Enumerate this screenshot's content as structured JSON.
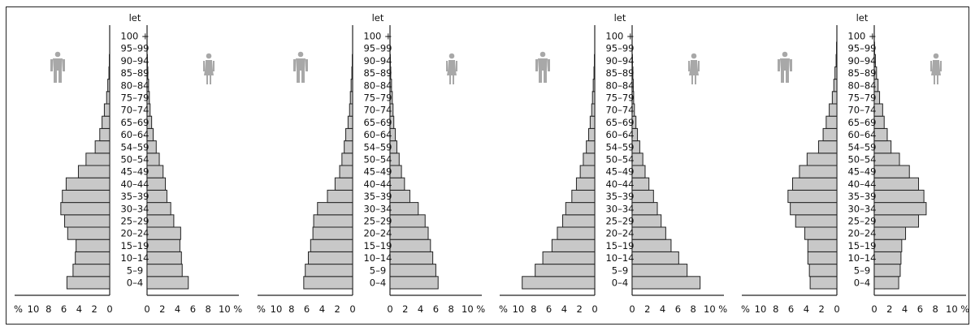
{
  "chart_data": [
    {
      "type": "bar",
      "orientation": "horizontal-pyramid",
      "age_header": "let",
      "categories": [
        "0–4",
        "5–9",
        "10–14",
        "15–19",
        "20–24",
        "25–29",
        "30–34",
        "35–39",
        "40–44",
        "45–49",
        "50–54",
        "54–59",
        "60–64",
        "65–69",
        "70–74",
        "75–79",
        "80–84",
        "85–89",
        "90–94",
        "95–99",
        "100 +"
      ],
      "left_axis_ticks": [
        "%",
        "10",
        "8",
        "6",
        "4",
        "2",
        "0"
      ],
      "right_axis_ticks": [
        "0",
        "2",
        "4",
        "6",
        "8",
        "10 %"
      ],
      "xlim": [
        0,
        10
      ],
      "series": [
        {
          "side": "left",
          "icon": "male-figure-icon",
          "values": [
            5.6,
            4.8,
            4.5,
            4.4,
            5.5,
            5.9,
            6.4,
            6.2,
            5.7,
            4.1,
            3.1,
            1.9,
            1.3,
            1.0,
            0.7,
            0.4,
            0.25,
            0.1,
            0.05,
            0.02,
            0.01
          ]
        },
        {
          "side": "right",
          "icon": "female-figure-icon",
          "values": [
            5.4,
            4.6,
            4.5,
            4.3,
            4.4,
            3.5,
            3.1,
            2.6,
            2.4,
            2.1,
            1.6,
            1.2,
            0.8,
            0.6,
            0.4,
            0.3,
            0.2,
            0.1,
            0.05,
            0.02,
            0.01
          ]
        }
      ]
    },
    {
      "type": "bar",
      "orientation": "horizontal-pyramid",
      "age_header": "let",
      "categories": [
        "0–4",
        "5–9",
        "10–14",
        "15–19",
        "20–24",
        "25–29",
        "30–34",
        "35–39",
        "40–44",
        "45–49",
        "50–54",
        "54–59",
        "60–64",
        "65–69",
        "70–74",
        "75–79",
        "80–84",
        "85–89",
        "90–94",
        "95–99",
        "100 +"
      ],
      "left_axis_ticks": [
        "%",
        "10",
        "8",
        "6",
        "4",
        "2",
        "0"
      ],
      "right_axis_ticks": [
        "0",
        "2",
        "4",
        "6",
        "8",
        "10 %"
      ],
      "xlim": [
        0,
        10
      ],
      "series": [
        {
          "side": "left",
          "icon": "male-figure-icon",
          "values": [
            6.4,
            6.2,
            5.8,
            5.5,
            5.2,
            5.1,
            4.6,
            3.3,
            2.3,
            1.7,
            1.4,
            1.1,
            0.9,
            0.6,
            0.4,
            0.3,
            0.2,
            0.1,
            0.05,
            0.02,
            0.01
          ]
        },
        {
          "side": "right",
          "icon": "female-figure-icon",
          "values": [
            6.3,
            6.0,
            5.6,
            5.3,
            5.0,
            4.6,
            3.7,
            2.6,
            1.9,
            1.5,
            1.2,
            0.9,
            0.7,
            0.5,
            0.4,
            0.3,
            0.2,
            0.1,
            0.05,
            0.02,
            0.01
          ]
        }
      ]
    },
    {
      "type": "bar",
      "orientation": "horizontal-pyramid",
      "age_header": "let",
      "categories": [
        "0–4",
        "5–9",
        "10–14",
        "15–19",
        "20–24",
        "25–29",
        "30–34",
        "35–39",
        "40–44",
        "45–49",
        "50–54",
        "54–59",
        "60–64",
        "65–69",
        "70–74",
        "75–79",
        "80–84",
        "85–89",
        "90–94",
        "95–99",
        "100 +"
      ],
      "left_axis_ticks": [
        "%",
        "10",
        "8",
        "6",
        "4",
        "2",
        "0"
      ],
      "right_axis_ticks": [
        "0",
        "2",
        "4",
        "6",
        "8",
        "10 %"
      ],
      "xlim": [
        0,
        10
      ],
      "series": [
        {
          "side": "left",
          "icon": "male-figure-icon",
          "values": [
            9.5,
            7.8,
            6.8,
            5.6,
            4.9,
            4.2,
            3.8,
            3.0,
            2.4,
            1.9,
            1.5,
            1.1,
            0.8,
            0.6,
            0.4,
            0.3,
            0.2,
            0.1,
            0.05,
            0.02,
            0.01
          ]
        },
        {
          "side": "right",
          "icon": "female-figure-icon",
          "values": [
            8.9,
            7.2,
            6.1,
            5.1,
            4.4,
            3.8,
            3.3,
            2.8,
            2.2,
            1.7,
            1.4,
            1.0,
            0.7,
            0.5,
            0.3,
            0.2,
            0.15,
            0.1,
            0.05,
            0.02,
            0.01
          ]
        }
      ]
    },
    {
      "type": "bar",
      "orientation": "horizontal-pyramid",
      "age_header": "let",
      "categories": [
        "0–4",
        "5–9",
        "10–14",
        "15–19",
        "20–24",
        "25–29",
        "30–34",
        "35–39",
        "40–44",
        "45–49",
        "50–54",
        "54–59",
        "60–64",
        "65–69",
        "70–74",
        "75–79",
        "80–84",
        "85–89",
        "90–94",
        "95–99",
        "100 +"
      ],
      "left_axis_ticks": [
        "%",
        "10",
        "8",
        "6",
        "4",
        "2",
        "0"
      ],
      "right_axis_ticks": [
        "0",
        "2",
        "4",
        "6",
        "8",
        "10 %"
      ],
      "xlim": [
        0,
        10
      ],
      "series": [
        {
          "side": "left",
          "icon": "male-figure-icon",
          "values": [
            3.5,
            3.6,
            3.8,
            3.8,
            4.2,
            5.4,
            6.1,
            6.4,
            5.8,
            4.9,
            3.9,
            2.4,
            1.8,
            1.4,
            1.0,
            0.6,
            0.4,
            0.25,
            0.1,
            0.05,
            0.02
          ]
        },
        {
          "side": "right",
          "icon": "female-figure-icon",
          "values": [
            3.2,
            3.4,
            3.5,
            3.6,
            4.1,
            5.8,
            6.8,
            6.5,
            5.8,
            4.6,
            3.3,
            2.2,
            1.7,
            1.3,
            1.1,
            0.7,
            0.5,
            0.3,
            0.15,
            0.05,
            0.02
          ]
        }
      ]
    }
  ]
}
